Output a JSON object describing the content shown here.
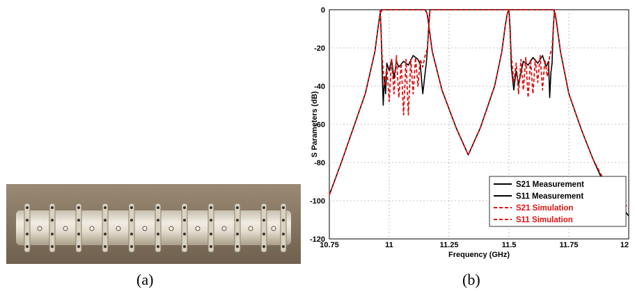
{
  "figure": {
    "caption_a": "(a)",
    "caption_b": "(b)"
  },
  "colors": {
    "measurement": "#000000",
    "simulation": "#e01010"
  },
  "chart_data": {
    "type": "line",
    "xlabel": "Frequency (GHz)",
    "ylabel": "S Parameters (dB)",
    "xlim": [
      10.75,
      12
    ],
    "ylim": [
      -120,
      0
    ],
    "xticks": [
      10.75,
      11,
      11.25,
      11.5,
      11.75,
      12
    ],
    "xtick_labels": [
      "10.75",
      "11",
      "11.25",
      "11.5",
      "11.75",
      "12"
    ],
    "yticks": [
      0,
      -20,
      -40,
      -60,
      -80,
      -100,
      -120
    ],
    "ytick_labels": [
      "0",
      "-20",
      "-40",
      "-60",
      "-80",
      "-100",
      "-120"
    ],
    "grid": true,
    "legend_position": "bottom-right",
    "series": [
      {
        "name": "S21 Measurement",
        "style": "solid",
        "color": "#000000",
        "x": [
          10.75,
          10.8,
          10.85,
          10.9,
          10.94,
          10.955,
          10.962,
          10.97,
          11.15,
          11.158,
          11.165,
          11.18,
          11.22,
          11.28,
          11.33,
          11.38,
          11.44,
          11.47,
          11.485,
          11.493,
          11.5,
          11.685,
          11.693,
          11.7,
          11.715,
          11.75,
          11.8,
          11.85,
          11.9,
          11.95,
          12
        ],
        "values": [
          -97,
          -80,
          -62,
          -44,
          -22,
          -8,
          -2,
          0,
          0,
          -2,
          -8,
          -22,
          -42,
          -62,
          -76,
          -62,
          -40,
          -22,
          -8,
          -2,
          0,
          0,
          -2,
          -8,
          -22,
          -44,
          -62,
          -78,
          -92,
          -100,
          -108
        ]
      },
      {
        "name": "S11 Measurement",
        "style": "solid",
        "color": "#000000",
        "x": [
          10.962,
          10.966,
          10.97,
          10.975,
          10.98,
          10.985,
          10.99,
          11.0,
          11.01,
          11.02,
          11.03,
          11.04,
          11.06,
          11.08,
          11.1,
          11.12,
          11.13,
          11.14,
          11.15,
          11.155,
          11.16,
          11.165,
          11.17,
          11.2,
          11.5,
          11.505,
          11.51,
          11.52,
          11.53,
          11.54,
          11.56,
          11.58,
          11.6,
          11.62,
          11.64,
          11.655,
          11.665,
          11.67,
          11.675,
          11.68,
          11.685,
          11.69
        ],
        "values": [
          0,
          -10,
          -30,
          -50,
          -35,
          -44,
          -28,
          -32,
          -26,
          -36,
          -27,
          -30,
          -27,
          -29,
          -24,
          -26,
          -29,
          -44,
          -33,
          -28,
          -20,
          -8,
          0,
          0,
          0,
          -10,
          -30,
          -42,
          -32,
          -39,
          -27,
          -29,
          -25,
          -28,
          -24,
          -30,
          -27,
          -46,
          -33,
          -28,
          -10,
          0
        ]
      },
      {
        "name": "S21 Simulation",
        "style": "dashed",
        "color": "#e01010",
        "x": [
          10.75,
          10.8,
          10.85,
          10.9,
          10.94,
          10.955,
          10.962,
          10.97,
          11.15,
          11.158,
          11.165,
          11.18,
          11.22,
          11.28,
          11.33,
          11.38,
          11.44,
          11.47,
          11.485,
          11.493,
          11.5,
          11.685,
          11.693,
          11.7,
          11.715,
          11.75,
          11.8,
          11.85,
          11.9,
          11.95,
          12
        ],
        "values": [
          -97,
          -80,
          -62,
          -44,
          -22,
          -8,
          -2,
          0,
          0,
          -2,
          -8,
          -22,
          -42,
          -62,
          -76,
          -62,
          -40,
          -22,
          -8,
          -2,
          0,
          0,
          -2,
          -8,
          -22,
          -44,
          -62,
          -78,
          -90,
          -97,
          -104
        ]
      },
      {
        "name": "S11 Simulation",
        "style": "dashed",
        "color": "#e01010",
        "x": [
          10.962,
          10.97,
          10.98,
          10.99,
          11.0,
          11.01,
          11.02,
          11.03,
          11.04,
          11.05,
          11.06,
          11.07,
          11.08,
          11.09,
          11.1,
          11.11,
          11.12,
          11.13,
          11.14,
          11.15,
          11.16,
          11.17,
          11.2,
          11.5,
          11.51,
          11.52,
          11.53,
          11.54,
          11.55,
          11.56,
          11.57,
          11.58,
          11.59,
          11.6,
          11.61,
          11.62,
          11.63,
          11.64,
          11.65,
          11.66,
          11.67,
          11.68,
          11.69
        ],
        "values": [
          0,
          -24,
          -40,
          -30,
          -48,
          -26,
          -44,
          -24,
          -46,
          -28,
          -55,
          -26,
          -55,
          -26,
          -44,
          -25,
          -40,
          -26,
          -30,
          -24,
          -20,
          0,
          0,
          0,
          -24,
          -38,
          -28,
          -44,
          -26,
          -42,
          -25,
          -46,
          -26,
          -44,
          -26,
          -38,
          -24,
          -42,
          -26,
          -35,
          -24,
          -20,
          0
        ]
      }
    ]
  }
}
